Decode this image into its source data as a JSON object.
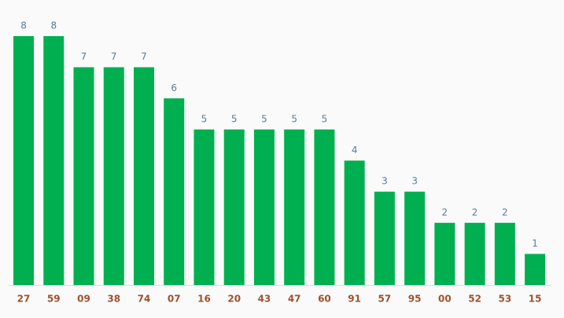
{
  "chart_data": {
    "type": "bar",
    "categories": [
      "27",
      "59",
      "09",
      "38",
      "74",
      "07",
      "16",
      "20",
      "43",
      "47",
      "60",
      "91",
      "57",
      "95",
      "00",
      "52",
      "53",
      "15"
    ],
    "values": [
      8,
      8,
      7,
      7,
      7,
      6,
      5,
      5,
      5,
      5,
      5,
      4,
      3,
      3,
      2,
      2,
      2,
      1
    ],
    "color": "#00b050"
  }
}
